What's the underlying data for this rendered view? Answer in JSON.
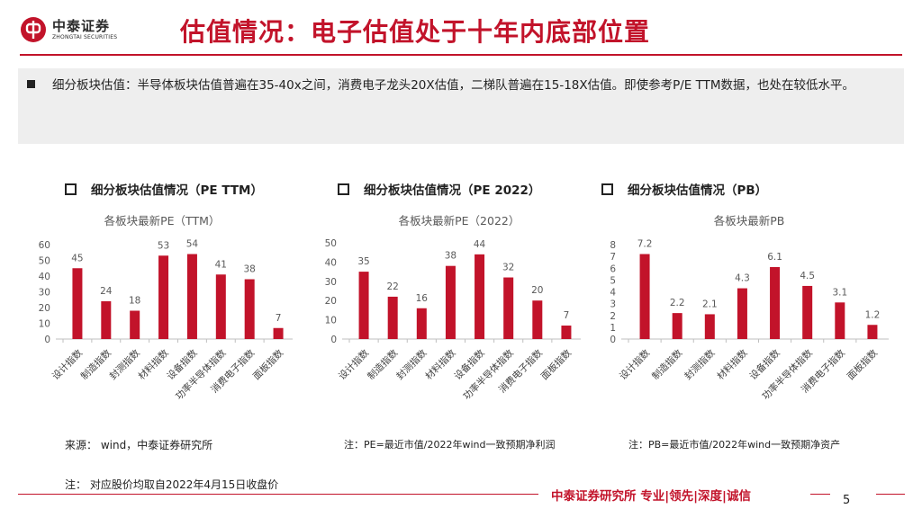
{
  "header": {
    "logo_cn": "中泰证券",
    "logo_en": "ZHONGTAI SECURITIES",
    "title": "估值情况：电子估值处于十年内底部位置"
  },
  "summary": {
    "text": "细分板块估值：半导体板块估值普遍在35-40x之间，消费电子龙头20X估值，二梯队普遍在15-18X估值。即使参考P/E TTM数据，也处在较低水平。"
  },
  "panels": [
    {
      "heading": "细分板块估值情况（PE TTM）",
      "note": "来源： wind，中泰证券研究所"
    },
    {
      "heading": "细分板块估值情况（PE 2022）",
      "note": "注：PE=最近市值/2022年wind一致预期净利润"
    },
    {
      "heading": "细分板块估值情况（PB）",
      "note": "注：PB=最近市值/2022年wind一致预期净资产"
    }
  ],
  "chart_data": [
    {
      "type": "bar",
      "title": "各板块最新PE（TTM）",
      "categories": [
        "设计指数",
        "制造指数",
        "封测指数",
        "材料指数",
        "设备指数",
        "功率半导体指数",
        "消费电子指数",
        "面板指数"
      ],
      "values": [
        45,
        24,
        18,
        53,
        54,
        41,
        38,
        7
      ],
      "labels": [
        "45",
        "24",
        "18",
        "53",
        "54",
        "41",
        "38",
        "7"
      ],
      "ylim": [
        0,
        60
      ],
      "yticks": [
        0,
        10,
        20,
        30,
        40,
        50,
        60
      ],
      "xlabel": "",
      "ylabel": ""
    },
    {
      "type": "bar",
      "title": "各板块最新PE（2022）",
      "categories": [
        "设计指数",
        "制造指数",
        "封测指数",
        "材料指数",
        "设备指数",
        "功率半导体指数",
        "消费电子指数",
        "面板指数"
      ],
      "values": [
        35,
        22,
        16,
        38,
        44,
        32,
        20,
        7
      ],
      "labels": [
        "35",
        "22",
        "16",
        "38",
        "44",
        "32",
        "20",
        "7"
      ],
      "ylim": [
        0,
        50
      ],
      "yticks": [
        0,
        10,
        20,
        30,
        40,
        50
      ],
      "xlabel": "",
      "ylabel": ""
    },
    {
      "type": "bar",
      "title": "各板块最新PB",
      "categories": [
        "设计指数",
        "制造指数",
        "封测指数",
        "材料指数",
        "设备指数",
        "功率半导体指数",
        "消费电子指数",
        "面板指数"
      ],
      "values": [
        7.2,
        2.2,
        2.1,
        4.3,
        6.1,
        4.5,
        3.1,
        1.2
      ],
      "labels": [
        "7.2",
        "2.2",
        "2.1",
        "4.3",
        "6.1",
        "4.5",
        "3.1",
        "1.2"
      ],
      "ylim": [
        0,
        8
      ],
      "yticks": [
        0,
        1,
        2,
        3,
        4,
        5,
        6,
        7,
        8
      ],
      "xlabel": "",
      "ylabel": ""
    }
  ],
  "bottom_note": "注： 对应股价均取自2022年4月15日收盘价",
  "footer": {
    "tagline": "中泰证券研究所 专业|领先|深度|诚信",
    "page": "5"
  },
  "colors": {
    "brand": "#c2132a",
    "bar": "#c2132a",
    "axis": "#bfbfbf",
    "text": "#595959"
  }
}
